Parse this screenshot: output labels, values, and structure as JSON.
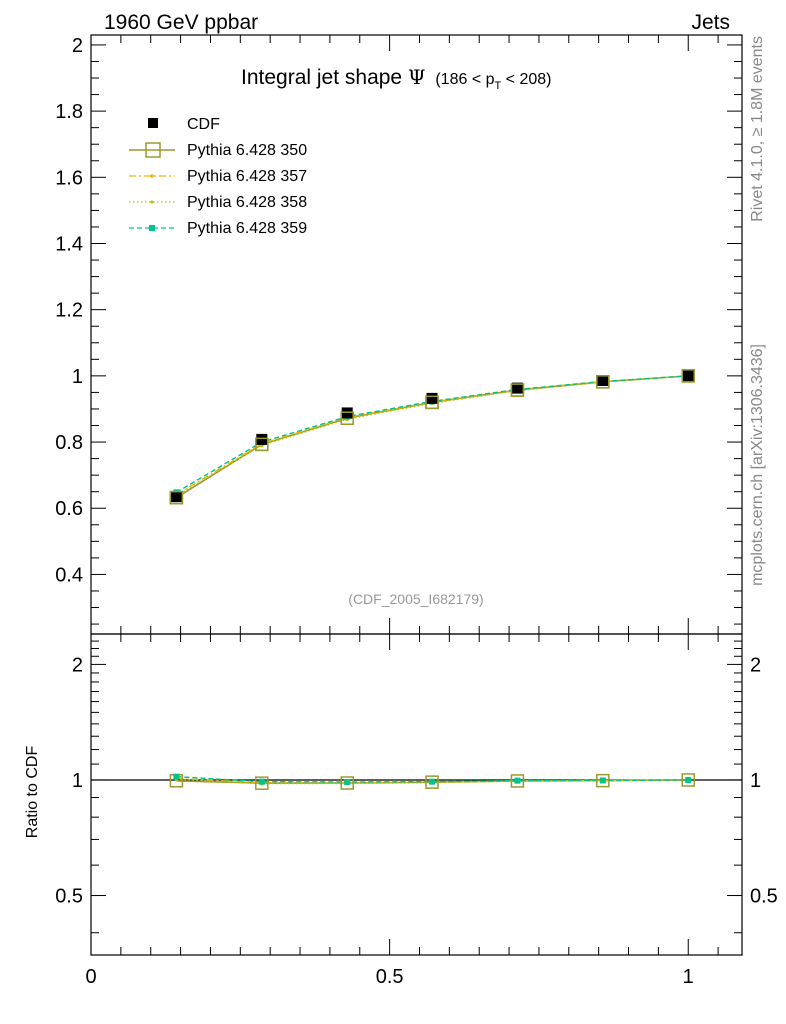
{
  "header": {
    "left": "1960 GeV ppbar",
    "right": "Jets"
  },
  "side": {
    "rivet": "Rivet 4.1.0, ≥ 1.8M events",
    "mcplots": "mcplots.cern.ch [arXiv:1306.3436]"
  },
  "title": {
    "main": "Integral jet shape",
    "psi": "Ψ",
    "range_pre": "(186 < p",
    "range_sub": "T",
    "range_post": " < 208)"
  },
  "analysis_id": "(CDF_2005_I682179)",
  "ratio_ylabel": "Ratio to CDF",
  "colors": {
    "data": "#000000",
    "p350": "#9a9a2e",
    "p357": "#e6b800",
    "p358": "#b8c400",
    "p359": "#00c48c"
  },
  "chart_data": [
    {
      "type": "line",
      "panel": "main",
      "title": "Integral jet shape Ψ (186 < pT < 208)",
      "xlabel": "",
      "ylabel": "",
      "xlim": [
        0,
        1.09
      ],
      "ylim": [
        0.22,
        2.03
      ],
      "yticks": [
        0.4,
        0.6,
        0.8,
        1,
        1.2,
        1.4,
        1.6,
        1.8,
        2
      ],
      "ytick_labels": [
        "0.4",
        "0.6",
        "0.8",
        "1",
        "1.2",
        "1.4",
        "1.6",
        "1.8",
        "2"
      ],
      "x": [
        0.143,
        0.286,
        0.429,
        0.571,
        0.714,
        0.857,
        1.0
      ],
      "series": [
        {
          "name": "CDF",
          "style": "marker",
          "values": [
            0.635,
            0.808,
            0.888,
            0.932,
            0.963,
            0.986,
            1.0
          ]
        },
        {
          "name": "Pythia 6.428 350",
          "style": "solid-open-square",
          "values": [
            0.632,
            0.793,
            0.872,
            0.92,
            0.957,
            0.982,
            1.0
          ]
        },
        {
          "name": "Pythia 6.428 357",
          "style": "dashdot",
          "values": [
            0.641,
            0.795,
            0.874,
            0.921,
            0.958,
            0.983,
            1.0
          ]
        },
        {
          "name": "Pythia 6.428 358",
          "style": "dotted",
          "values": [
            0.638,
            0.79,
            0.869,
            0.917,
            0.955,
            0.981,
            1.0
          ]
        },
        {
          "name": "Pythia 6.428 359",
          "style": "dashed",
          "values": [
            0.648,
            0.8,
            0.877,
            0.923,
            0.959,
            0.983,
            1.0
          ]
        }
      ],
      "legend_position": "top-left"
    },
    {
      "type": "line",
      "panel": "ratio",
      "xlabel": "",
      "ylabel": "Ratio to CDF",
      "xlim": [
        0,
        1.09
      ],
      "ylim": [
        0.35,
        2.4
      ],
      "yscale": "log",
      "yticks": [
        0.5,
        1,
        2
      ],
      "ytick_labels": [
        "0.5",
        "1",
        "2"
      ],
      "xticks": [
        0,
        0.5,
        1
      ],
      "xtick_labels": [
        "0",
        "0.5",
        "1"
      ],
      "x": [
        0.143,
        0.286,
        0.429,
        0.571,
        0.714,
        0.857,
        1.0
      ],
      "series": [
        {
          "name": "Pythia 6.428 350",
          "values": [
            0.995,
            0.981,
            0.982,
            0.987,
            0.994,
            0.996,
            1.0
          ]
        },
        {
          "name": "Pythia 6.428 357",
          "values": [
            1.009,
            0.984,
            0.984,
            0.988,
            0.995,
            0.997,
            1.0
          ]
        },
        {
          "name": "Pythia 6.428 358",
          "values": [
            1.005,
            0.978,
            0.979,
            0.984,
            0.992,
            0.995,
            1.0
          ]
        },
        {
          "name": "Pythia 6.428 359",
          "values": [
            1.02,
            0.99,
            0.988,
            0.99,
            0.996,
            0.997,
            1.0
          ]
        }
      ]
    }
  ]
}
